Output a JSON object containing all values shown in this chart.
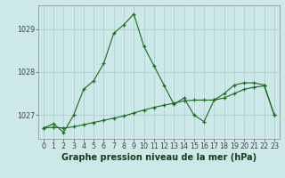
{
  "series1": {
    "x": [
      0,
      1,
      2,
      3,
      4,
      5,
      6,
      7,
      8,
      9,
      10,
      11,
      12,
      13,
      14,
      15,
      16,
      17,
      18,
      19,
      20,
      21,
      22,
      23
    ],
    "y": [
      1026.7,
      1026.8,
      1026.6,
      1027.0,
      1027.6,
      1027.8,
      1028.2,
      1028.9,
      1029.1,
      1029.35,
      1028.6,
      1028.15,
      1027.7,
      1027.25,
      1027.4,
      1027.0,
      1026.85,
      1027.35,
      1027.5,
      1027.7,
      1027.75,
      1027.75,
      1027.7,
      1027.0
    ]
  },
  "series2": {
    "x": [
      0,
      1,
      2,
      3,
      4,
      5,
      6,
      7,
      8,
      9,
      10,
      11,
      12,
      13,
      14,
      15,
      16,
      17,
      18,
      19,
      20,
      21,
      22,
      23
    ],
    "y": [
      1026.7,
      1026.72,
      1026.7,
      1026.73,
      1026.78,
      1026.83,
      1026.88,
      1026.93,
      1026.98,
      1027.05,
      1027.12,
      1027.18,
      1027.23,
      1027.28,
      1027.33,
      1027.35,
      1027.35,
      1027.35,
      1027.4,
      1027.5,
      1027.6,
      1027.65,
      1027.68,
      1027.0
    ]
  },
  "line_color": "#1a6b1a",
  "bg_color": "#cce8e8",
  "grid_color": "#aacccc",
  "title": "Graphe pression niveau de la mer (hPa)",
  "ylim": [
    1026.45,
    1029.55
  ],
  "yticks": [
    1027,
    1028,
    1029
  ],
  "xlim": [
    -0.5,
    23.5
  ],
  "xticks": [
    0,
    1,
    2,
    3,
    4,
    5,
    6,
    7,
    8,
    9,
    10,
    11,
    12,
    13,
    14,
    15,
    16,
    17,
    18,
    19,
    20,
    21,
    22,
    23
  ],
  "title_fontsize": 7.0,
  "tick_fontsize": 5.8
}
